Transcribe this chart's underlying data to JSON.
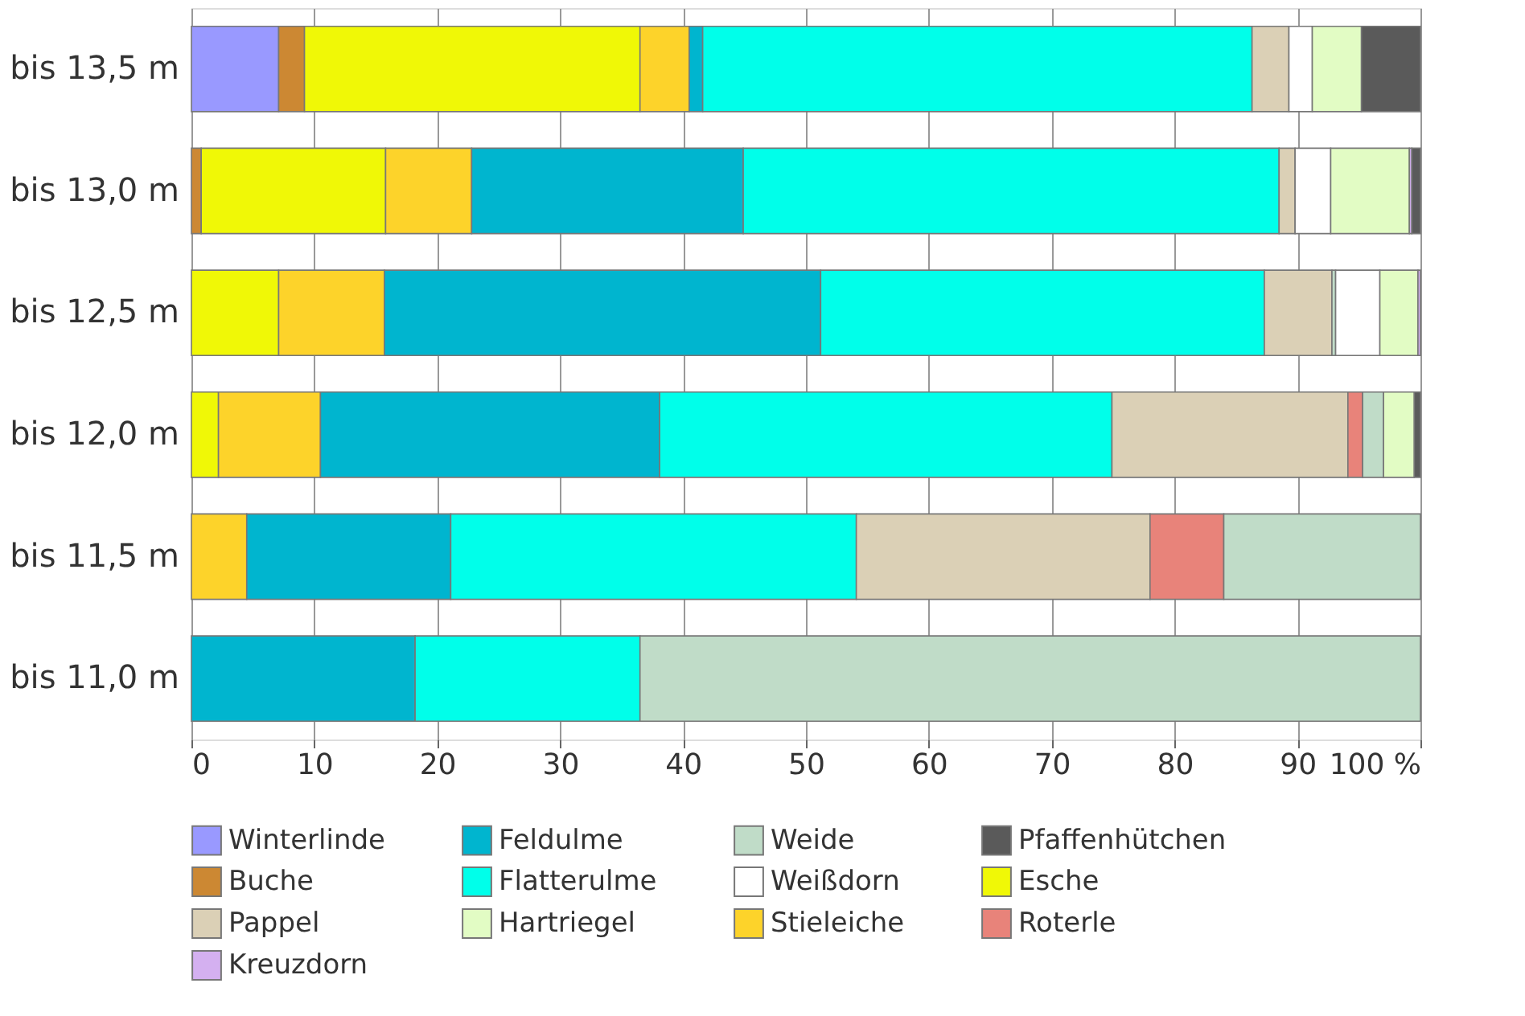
{
  "chart_data": {
    "type": "bar",
    "orientation": "horizontal",
    "stacked": true,
    "categories": [
      "bis 13,5 m",
      "bis 13,0 m",
      "bis 12,5 m",
      "bis 12,0 m",
      "bis 11,5 m",
      "bis 11,0 m"
    ],
    "series": [
      {
        "name": "Winterlinde",
        "color": "#9999ff",
        "values": [
          7.1,
          null,
          null,
          null,
          null,
          null
        ]
      },
      {
        "name": "Buche",
        "color": "#cc8833",
        "values": [
          2.1,
          0.8,
          null,
          null,
          null,
          null
        ]
      },
      {
        "name": "Esche",
        "color": "#f0f806",
        "values": [
          27.3,
          15.0,
          7.1,
          2.2,
          null,
          null
        ]
      },
      {
        "name": "Stieleiche",
        "color": "#fdd32a",
        "values": [
          4.0,
          7.0,
          8.6,
          8.3,
          4.5,
          null
        ]
      },
      {
        "name": "Feldulme",
        "color": "#00b5cf",
        "values": [
          1.1,
          22.1,
          35.5,
          27.6,
          16.6,
          18.2
        ]
      },
      {
        "name": "Flatterulme",
        "color": "#00ffea",
        "values": [
          44.7,
          43.6,
          36.1,
          36.8,
          33.0,
          18.3
        ]
      },
      {
        "name": "Pappel",
        "color": "#dbd0b6",
        "values": [
          3.0,
          1.3,
          5.5,
          19.2,
          23.9,
          null
        ]
      },
      {
        "name": "Roterle",
        "color": "#e8837a",
        "values": [
          null,
          null,
          null,
          1.2,
          6.0,
          null
        ]
      },
      {
        "name": "Weide",
        "color": "#c0dcc8",
        "values": [
          null,
          null,
          0.3,
          1.7,
          16.0,
          63.5
        ]
      },
      {
        "name": "Weißdorn",
        "color": "#ffffff",
        "values": [
          1.9,
          2.9,
          3.6,
          null,
          null,
          null
        ]
      },
      {
        "name": "Hartriegel",
        "color": "#e2fcc4",
        "values": [
          4.0,
          6.4,
          3.1,
          2.5,
          null,
          null
        ]
      },
      {
        "name": "Kreuzdorn",
        "color": "#d4b0f0",
        "values": [
          null,
          0.2,
          0.2,
          null,
          null,
          null
        ]
      },
      {
        "name": "Pfaffenhütchen",
        "color": "#5a5a5a",
        "values": [
          4.8,
          0.7,
          null,
          0.5,
          null,
          null
        ]
      }
    ],
    "xlim": [
      0,
      100
    ],
    "xticks": [
      0,
      10,
      20,
      30,
      40,
      50,
      60,
      70,
      80,
      90,
      {
        "value": 100,
        "label": "100 %"
      }
    ],
    "grid": "x",
    "legend": "bottom"
  }
}
